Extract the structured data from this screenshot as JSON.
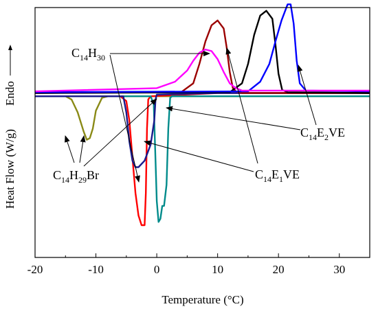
{
  "chart_data": {
    "type": "line",
    "xlabel": "Temperature (°C)",
    "ylabel": "Heat Flow (W/g)",
    "ylabel_dir": "Endo",
    "xlim": [
      -20,
      35
    ],
    "x_ticks": [
      -20,
      -10,
      0,
      10,
      20,
      30
    ],
    "x_tick_labels": [
      "-20",
      "-10",
      "0",
      "10",
      "20",
      "30"
    ],
    "ylim": [
      -1.0,
      0.55
    ],
    "y_ticks_shown": false,
    "series": [
      {
        "key": "olive",
        "color": "#8a8a16",
        "points": [
          [
            -20,
            0
          ],
          [
            -15,
            0
          ],
          [
            -14,
            -0.02
          ],
          [
            -13,
            -0.1
          ],
          [
            -12,
            -0.22
          ],
          [
            -11.5,
            -0.27
          ],
          [
            -11,
            -0.26
          ],
          [
            -10.5,
            -0.2
          ],
          [
            -10,
            -0.09
          ],
          [
            -9,
            -0.01
          ],
          [
            -8,
            0
          ],
          [
            35,
            0
          ]
        ]
      },
      {
        "key": "red",
        "color": "#ff0000",
        "points": [
          [
            -20,
            0
          ],
          [
            -6,
            0
          ],
          [
            -5,
            -0.03
          ],
          [
            -4.5,
            -0.15
          ],
          [
            -4,
            -0.38
          ],
          [
            -3.5,
            -0.6
          ],
          [
            -3,
            -0.74
          ],
          [
            -2.5,
            -0.8
          ],
          [
            -2,
            -0.8
          ],
          [
            -1.8,
            -0.6
          ],
          [
            -1.6,
            -0.2
          ],
          [
            -1.4,
            -0.02
          ],
          [
            -1,
            0
          ],
          [
            10,
            0.02
          ],
          [
            35,
            0.02
          ]
        ]
      },
      {
        "key": "teal",
        "color": "#008b8b",
        "points": [
          [
            -20,
            0
          ],
          [
            -1,
            0
          ],
          [
            -0.5,
            -0.05
          ],
          [
            -0.2,
            -0.4
          ],
          [
            0,
            -0.65
          ],
          [
            0.3,
            -0.78
          ],
          [
            0.6,
            -0.76
          ],
          [
            0.9,
            -0.68
          ],
          [
            1.2,
            -0.68
          ],
          [
            1.6,
            -0.55
          ],
          [
            1.9,
            -0.2
          ],
          [
            2.2,
            -0.01
          ],
          [
            2.5,
            0
          ],
          [
            35,
            0
          ]
        ]
      },
      {
        "key": "navy",
        "color": "#1a1a8c",
        "points": [
          [
            -20,
            0
          ],
          [
            -5.5,
            0
          ],
          [
            -5,
            -0.1
          ],
          [
            -4.5,
            -0.28
          ],
          [
            -4,
            -0.4
          ],
          [
            -3.5,
            -0.44
          ],
          [
            -3,
            -0.44
          ],
          [
            -2,
            -0.4
          ],
          [
            -1,
            -0.3
          ],
          [
            -0.4,
            -0.15
          ],
          [
            -0.2,
            -0.02
          ],
          [
            0,
            0.01
          ],
          [
            10,
            0.02
          ],
          [
            35,
            0.02
          ]
        ]
      },
      {
        "key": "darkred",
        "color": "#9b0000",
        "points": [
          [
            -20,
            0.02
          ],
          [
            4,
            0.025
          ],
          [
            6,
            0.08
          ],
          [
            7,
            0.2
          ],
          [
            8,
            0.34
          ],
          [
            9,
            0.44
          ],
          [
            10,
            0.47
          ],
          [
            11,
            0.42
          ],
          [
            11.5,
            0.3
          ],
          [
            12,
            0.15
          ],
          [
            12.5,
            0.05
          ],
          [
            13,
            0.03
          ],
          [
            14,
            0.02
          ],
          [
            35,
            0.02
          ]
        ]
      },
      {
        "key": "black",
        "color": "#000000",
        "points": [
          [
            -20,
            0.02
          ],
          [
            12,
            0.025
          ],
          [
            14,
            0.08
          ],
          [
            15,
            0.2
          ],
          [
            16,
            0.38
          ],
          [
            17,
            0.5
          ],
          [
            18,
            0.53
          ],
          [
            19,
            0.48
          ],
          [
            19.5,
            0.32
          ],
          [
            20,
            0.14
          ],
          [
            20.6,
            0.04
          ],
          [
            21.5,
            0.025
          ],
          [
            35,
            0.02
          ]
        ]
      },
      {
        "key": "blue",
        "color": "#0000ff",
        "points": [
          [
            -20,
            0.025
          ],
          [
            15,
            0.03
          ],
          [
            17,
            0.09
          ],
          [
            18.5,
            0.2
          ],
          [
            19.5,
            0.34
          ],
          [
            20.5,
            0.47
          ],
          [
            21.5,
            0.57
          ],
          [
            22,
            0.57
          ],
          [
            22.5,
            0.45
          ],
          [
            23,
            0.22
          ],
          [
            23.5,
            0.08
          ],
          [
            24.5,
            0.035
          ],
          [
            35,
            0.03
          ]
        ]
      },
      {
        "key": "magenta",
        "color": "#ff00ff",
        "points": [
          [
            -20,
            0.03
          ],
          [
            0,
            0.05
          ],
          [
            3,
            0.09
          ],
          [
            5,
            0.16
          ],
          [
            6,
            0.22
          ],
          [
            7,
            0.27
          ],
          [
            8,
            0.29
          ],
          [
            9,
            0.28
          ],
          [
            10,
            0.23
          ],
          [
            11,
            0.15
          ],
          [
            12,
            0.08
          ],
          [
            13,
            0.05
          ],
          [
            14,
            0.035
          ],
          [
            35,
            0.035
          ]
        ]
      }
    ],
    "annotations": [
      {
        "id": "c14h30",
        "main1": "C",
        "sub1": "14",
        "main2": "H",
        "sub2": "30",
        "main3": ""
      },
      {
        "id": "c14e2ve",
        "main1": "C",
        "sub1": "14",
        "main2": "E",
        "sub2": "2",
        "main3": "VE"
      },
      {
        "id": "c14e1ve",
        "main1": "C",
        "sub1": "14",
        "main2": "E",
        "sub2": "1",
        "main3": "VE"
      },
      {
        "id": "c14h29br",
        "main1": "C",
        "sub1": "14",
        "main2": "H",
        "sub2": "29",
        "main3": "Br"
      }
    ]
  }
}
